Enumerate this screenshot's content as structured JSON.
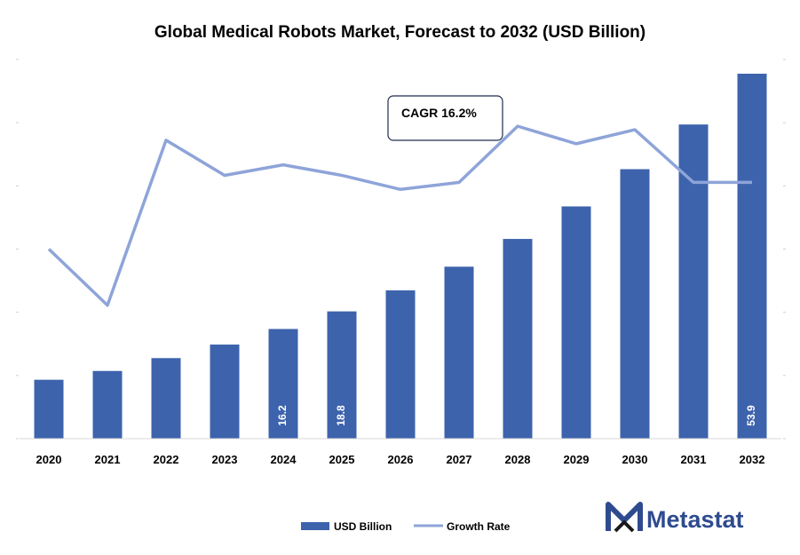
{
  "chart_data": {
    "type": "bar",
    "title": "Global Medical Robots Market, Forecast to 2032 (USD Billion)",
    "categories": [
      "2020",
      "2021",
      "2022",
      "2023",
      "2024",
      "2025",
      "2026",
      "2027",
      "2028",
      "2029",
      "2030",
      "2031",
      "2032"
    ],
    "series": [
      {
        "name": "USD Billion",
        "type": "bar",
        "color": "#3d63ad",
        "values": [
          8.7,
          10.0,
          11.9,
          13.9,
          16.2,
          18.8,
          21.9,
          25.4,
          29.5,
          34.3,
          39.8,
          46.4,
          53.9
        ]
      },
      {
        "name": "Growth Rate",
        "type": "line",
        "color": "#8ea4d9",
        "values": [
          13.8,
          12.2,
          16.9,
          15.9,
          16.2,
          15.9,
          15.5,
          15.7,
          17.3,
          16.8,
          17.2,
          15.7,
          15.7
        ]
      }
    ],
    "data_labels": [
      {
        "index": 4,
        "text": "16.2"
      },
      {
        "index": 5,
        "text": "18.8"
      },
      {
        "index": 12,
        "text": "53.9"
      }
    ],
    "ylim_bar": [
      0,
      56
    ],
    "ylim_line": [
      8.4,
      19.2
    ],
    "annotation": "CAGR 16.2%",
    "legend_position": "bottom"
  },
  "brand": {
    "name": "Metastat",
    "color": "#2e4b8f",
    "logo_icon": "metastat-m-logo"
  }
}
